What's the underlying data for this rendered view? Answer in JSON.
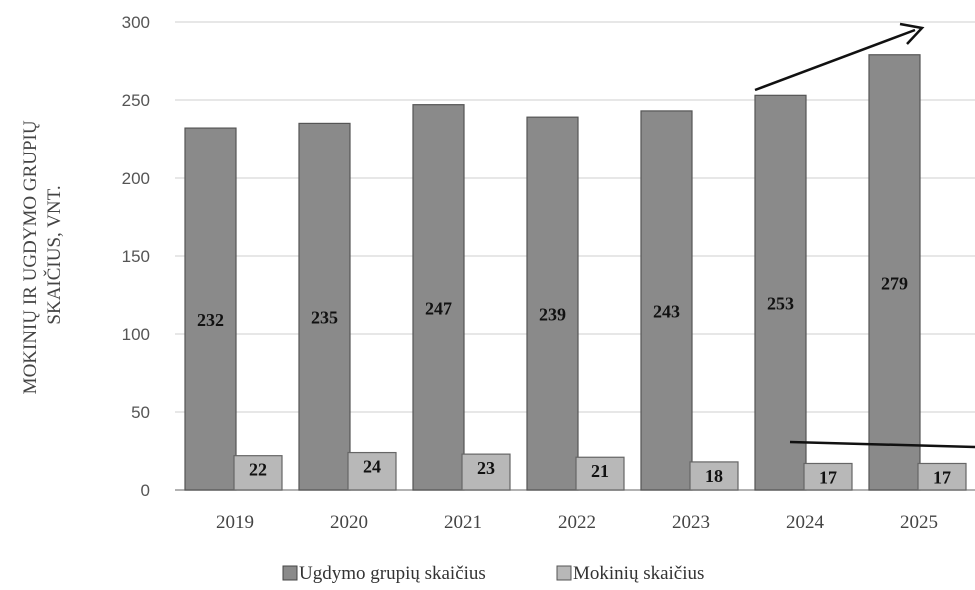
{
  "chart_data": {
    "type": "bar",
    "title": "",
    "xlabel": "",
    "ylabel_lines": [
      "MOKINIŲ IR UGDYMO GRUPIŲ",
      "SKAIČIUS, VNT."
    ],
    "categories": [
      "2019",
      "2020",
      "2021",
      "2022",
      "2023",
      "2024",
      "2025"
    ],
    "series": [
      {
        "name": "Ugdymo grupių skaičius",
        "values": [
          232,
          235,
          247,
          239,
          243,
          253,
          279
        ],
        "color": "#8a8a8a"
      },
      {
        "name": "Mokinių skaičius",
        "values": [
          22,
          24,
          23,
          21,
          18,
          17,
          17
        ],
        "color": "#b8b8b8"
      }
    ],
    "ylim": [
      0,
      300
    ],
    "yticks": [
      "0",
      "50",
      "100",
      "150",
      "200",
      "250",
      "300"
    ],
    "grid": true,
    "legend": "bottom",
    "annotations": [
      "upward trend arrow above 2024–2025",
      "flat line over Mokinių bars 2024–2025"
    ]
  }
}
